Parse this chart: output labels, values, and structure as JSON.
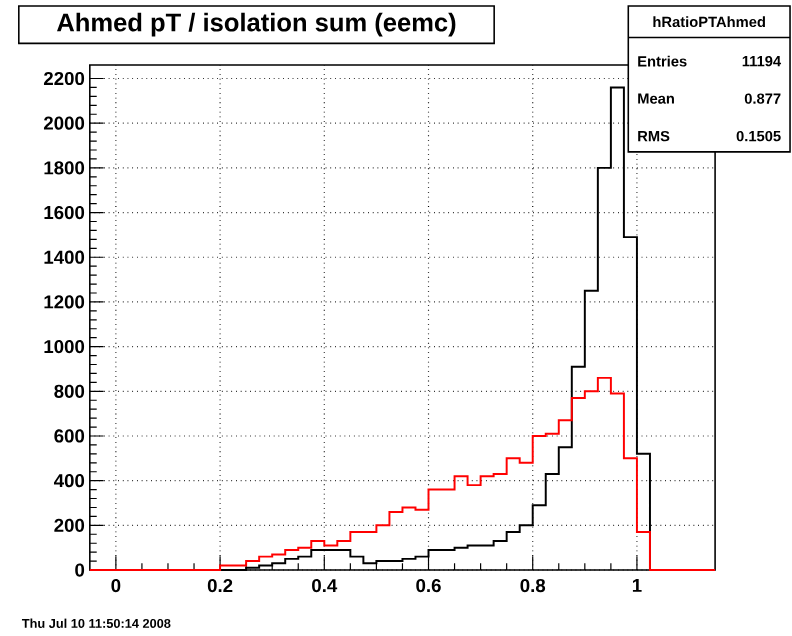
{
  "chart_data": {
    "type": "histogram",
    "title": "Ahmed pT / isolation sum (eemc)",
    "bins": [
      -0.05,
      -0.025,
      0,
      0.025,
      0.05,
      0.075,
      0.1,
      0.125,
      0.15,
      0.175,
      0.2,
      0.225,
      0.25,
      0.275,
      0.3,
      0.325,
      0.35,
      0.375,
      0.4,
      0.425,
      0.45,
      0.475,
      0.5,
      0.525,
      0.55,
      0.575,
      0.6,
      0.625,
      0.65,
      0.675,
      0.7,
      0.725,
      0.75,
      0.775,
      0.8,
      0.825,
      0.85,
      0.875,
      0.9,
      0.925,
      0.95,
      0.975,
      1.0,
      1.025,
      1.05,
      1.075,
      1.1,
      1.125,
      1.15
    ],
    "series": [
      {
        "color": "#000000",
        "values": [
          0,
          0,
          0,
          0,
          0,
          0,
          0,
          0,
          0,
          0,
          0,
          0,
          10,
          20,
          30,
          50,
          60,
          90,
          90,
          90,
          60,
          30,
          40,
          40,
          50,
          60,
          90,
          90,
          100,
          110,
          110,
          130,
          170,
          200,
          290,
          430,
          550,
          910,
          1250,
          1800,
          2160,
          1490,
          520,
          0,
          0,
          0,
          0,
          0
        ]
      },
      {
        "color": "#ff0000",
        "values": [
          0,
          0,
          0,
          0,
          0,
          0,
          0,
          0,
          0,
          0,
          20,
          20,
          40,
          60,
          70,
          90,
          100,
          130,
          110,
          130,
          170,
          170,
          200,
          260,
          280,
          270,
          360,
          360,
          420,
          380,
          420,
          430,
          500,
          480,
          600,
          610,
          670,
          770,
          800,
          860,
          790,
          500,
          170,
          0,
          0,
          0,
          0,
          0
        ]
      }
    ],
    "xlim": [
      -0.05,
      1.15
    ],
    "ylim": [
      0,
      2260
    ],
    "xticks": [
      0,
      0.2,
      0.4,
      0.6,
      0.8,
      1
    ],
    "yticks": [
      0,
      200,
      400,
      600,
      800,
      1000,
      1200,
      1400,
      1600,
      1800,
      2000,
      2200
    ],
    "grid": true,
    "annotations": [
      "hRatioPTAhmed",
      "Entries",
      "11194",
      "Mean",
      "0.877",
      "RMS",
      "0.1505",
      "Thu Jul 10 11:50:14 2008"
    ]
  }
}
